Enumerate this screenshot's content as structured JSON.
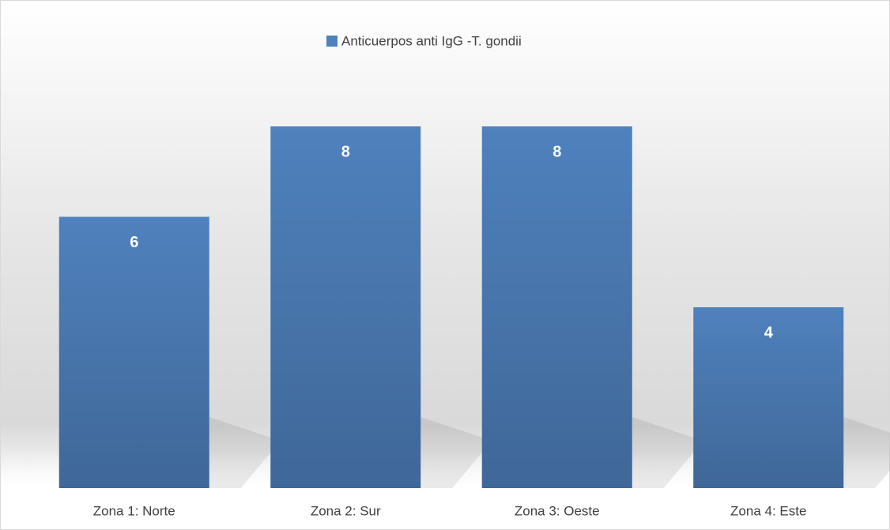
{
  "chart_data": {
    "type": "bar",
    "categories": [
      "Zona 1: Norte",
      "Zona 2: Sur",
      "Zona 3: Oeste",
      "Zona 4: Este"
    ],
    "series": [
      {
        "name": "Anticuerpos  anti IgG -T. gondii",
        "color": "#4f81bd",
        "values": [
          6,
          8,
          8,
          4
        ]
      }
    ],
    "legend": "top"
  }
}
